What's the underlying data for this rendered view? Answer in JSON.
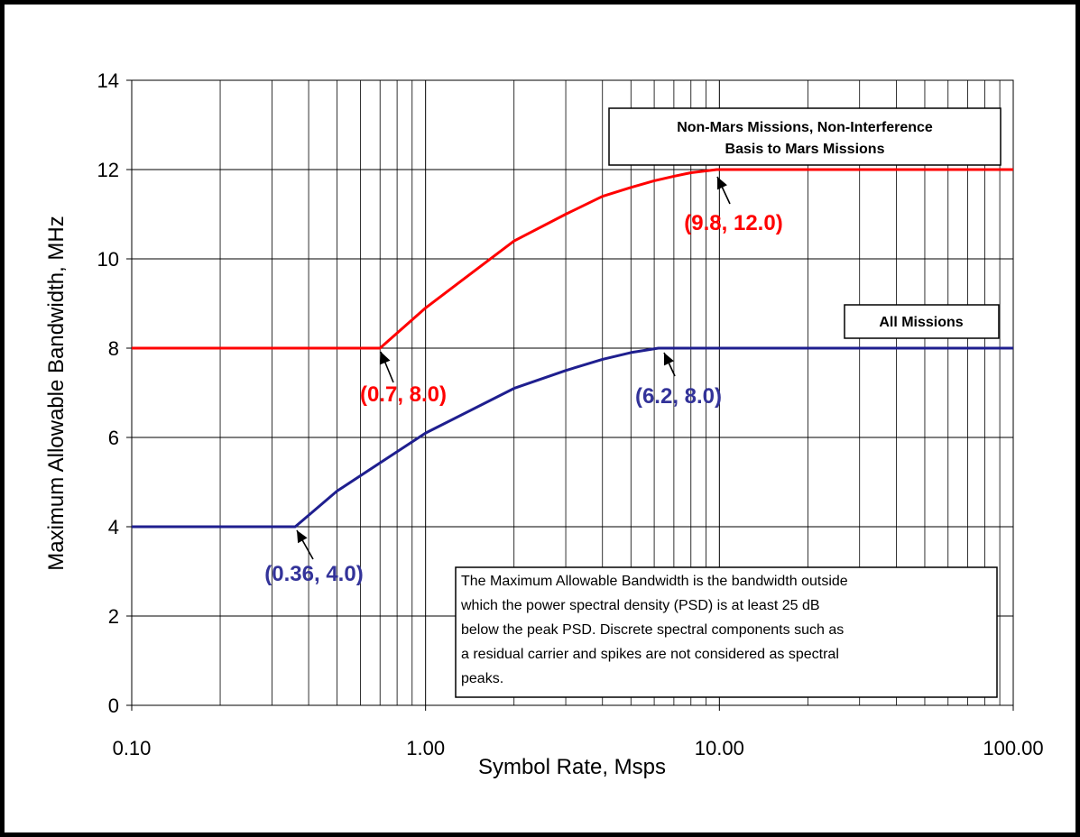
{
  "chart_data": {
    "type": "line",
    "xlabel": "Symbol Rate, Msps",
    "ylabel": "Maximum Allowable Bandwidth, MHz",
    "x_scale": "log",
    "xlim": [
      0.1,
      100
    ],
    "ylim": [
      0,
      14
    ],
    "grid": true,
    "x_ticks": [
      0.1,
      1,
      10,
      100
    ],
    "x_tick_labels": [
      "0.10",
      "1.00",
      "10.00",
      "100.00"
    ],
    "y_ticks": [
      0,
      2,
      4,
      6,
      8,
      10,
      12,
      14
    ],
    "y_tick_labels": [
      "0",
      "2",
      "4",
      "6",
      "8",
      "10",
      "12",
      "14"
    ],
    "series": [
      {
        "name": "Non-Mars Missions, Non-Interference Basis to Mars Missions",
        "color": "#ff0000",
        "x": [
          0.1,
          0.7,
          1.0,
          2.0,
          3.0,
          4.0,
          5.0,
          6.0,
          7.0,
          8.0,
          9.8,
          100
        ],
        "y": [
          8.0,
          8.0,
          8.9,
          10.4,
          11.0,
          11.4,
          11.6,
          11.75,
          11.85,
          11.93,
          12.0,
          12.0
        ]
      },
      {
        "name": "All Missions",
        "color": "#1f1f8f",
        "x": [
          0.1,
          0.36,
          0.5,
          1.0,
          2.0,
          3.0,
          4.0,
          5.0,
          6.2,
          100
        ],
        "y": [
          4.0,
          4.0,
          4.8,
          6.1,
          7.1,
          7.5,
          7.75,
          7.9,
          8.0,
          8.0
        ]
      }
    ],
    "annotations": [
      {
        "id": "red-07",
        "text": "(0.7, 8.0)",
        "color": "#ff0000",
        "point": [
          0.7,
          8.0
        ]
      },
      {
        "id": "red-98",
        "text": "(9.8, 12.0)",
        "color": "#ff0000",
        "point": [
          9.8,
          12.0
        ]
      },
      {
        "id": "blue-036",
        "text": "(0.36, 4.0)",
        "color": "#333399",
        "point": [
          0.36,
          4.0
        ]
      },
      {
        "id": "blue-62",
        "text": "(6.2, 8.0)",
        "color": "#333399",
        "point": [
          6.2,
          8.0
        ]
      }
    ],
    "box_labels": {
      "non_mars_line1": "Non-Mars Missions, Non-Interference",
      "non_mars_line2": "Basis to Mars Missions",
      "all_missions": "All Missions"
    },
    "note_lines": [
      "The Maximum Allowable Bandwidth is the bandwidth outside",
      "which the power spectral density (PSD) is at least 25 dB",
      "below the peak PSD. Discrete spectral components such as",
      "a residual carrier and spikes are not considered as spectral",
      "peaks."
    ]
  }
}
